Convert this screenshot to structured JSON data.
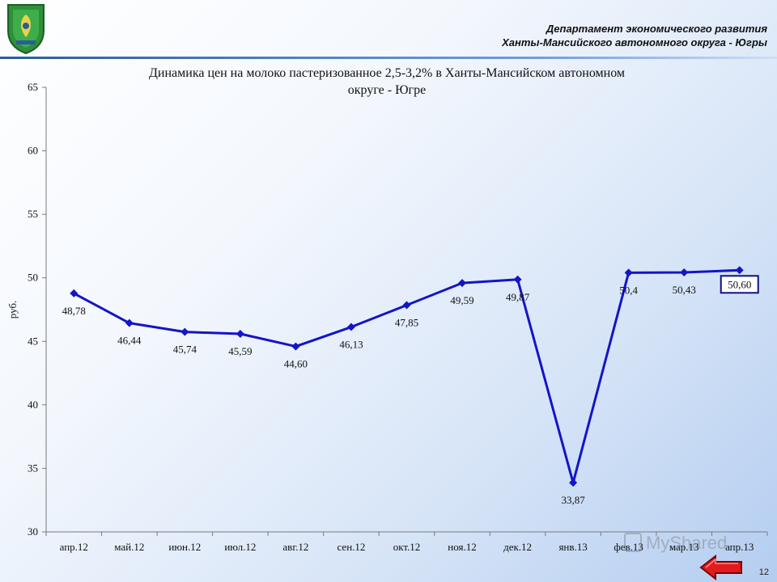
{
  "header": {
    "department_line1": "Департамент экономического развития",
    "department_line2": "Ханты-Мансийского автономного округа - Югры"
  },
  "chart_data": {
    "type": "line",
    "title_line1": "Динамика цен на молоко пастеризованное 2,5-3,2% в Ханты-Мансийском автономном",
    "title_line2": "округе - Югре",
    "ylabel": "руб.",
    "xlabel": "",
    "ylim": [
      30,
      65
    ],
    "yticks": [
      30,
      35,
      40,
      45,
      50,
      55,
      60,
      65
    ],
    "categories": [
      "апр.12",
      "май.12",
      "июн.12",
      "июл.12",
      "авг.12",
      "сен.12",
      "окт.12",
      "ноя.12",
      "дек.12",
      "янв.13",
      "фев.13",
      "мар.13",
      "апр.13"
    ],
    "series": [
      {
        "values": [
          48.78,
          46.44,
          45.74,
          45.59,
          44.6,
          46.13,
          47.85,
          49.59,
          49.87,
          33.87,
          50.4,
          50.43,
          50.6
        ],
        "labels": [
          "48,78",
          "46,44",
          "45,74",
          "45,59",
          "44,60",
          "46,13",
          "47,85",
          "49,59",
          "49,87",
          "33,87",
          "50,4",
          "50,43",
          "50,60"
        ],
        "color": "#1414c8"
      }
    ],
    "highlight_last_label": true,
    "grid": false,
    "legend": "none"
  },
  "footer": {
    "page_number": "12"
  },
  "watermark": {
    "text": "MyShared"
  }
}
